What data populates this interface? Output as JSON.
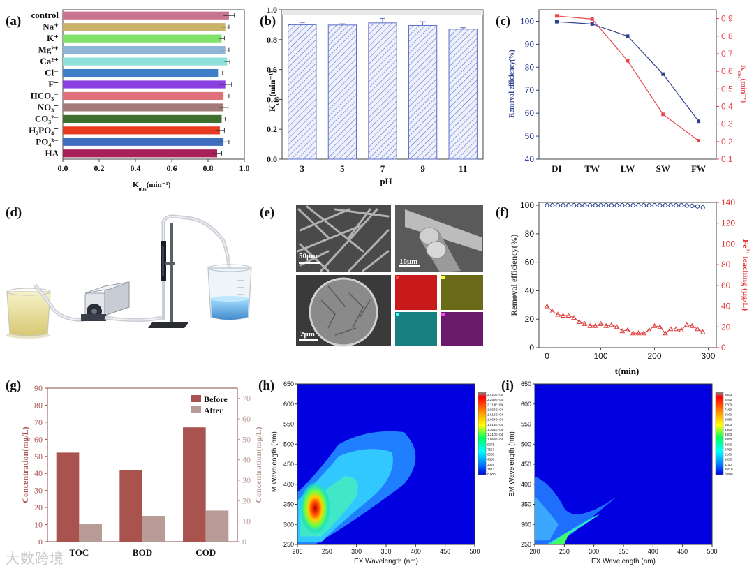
{
  "figure": {
    "panel_labels": [
      "(a)",
      "(b)",
      "(c)",
      "(d)",
      "(e)",
      "(f)",
      "(g)",
      "(h)",
      "(i)"
    ],
    "watermark": "大数跨境"
  },
  "chart_data": [
    {
      "panel": "a",
      "type": "bar",
      "orientation": "horizontal",
      "xlabel": "K",
      "xlabel_sub": "obs",
      "xlabel_tail": "(min⁻¹)",
      "xlim": [
        0,
        1.0
      ],
      "xticks": [
        0.0,
        0.2,
        0.4,
        0.6,
        0.8,
        1.0
      ],
      "categories": [
        "control",
        "Na⁺",
        "K⁺",
        "Mg²⁺",
        "Ca²⁺",
        "Cl⁻",
        "F⁻",
        "HCO₃⁻",
        "NO₃⁻",
        "CO₃²⁻",
        "H₂PO₄⁻",
        "PO₄³⁻",
        "HA"
      ],
      "values": [
        0.915,
        0.895,
        0.875,
        0.895,
        0.905,
        0.855,
        0.895,
        0.885,
        0.885,
        0.875,
        0.865,
        0.885,
        0.85
      ],
      "errors": [
        0.03,
        0.02,
        0.015,
        0.02,
        0.015,
        0.025,
        0.035,
        0.03,
        0.025,
        0.02,
        0.025,
        0.03,
        0.025
      ],
      "colors": [
        "#c9758f",
        "#c9b36a",
        "#7fe06a",
        "#8fb5d8",
        "#8fe0d8",
        "#3f7fc8",
        "#8a3fe0",
        "#e0707a",
        "#a27a78",
        "#3f6f2f",
        "#e83a1f",
        "#3f6fbf",
        "#a8205a"
      ]
    },
    {
      "panel": "b",
      "type": "bar",
      "xlabel": "pH",
      "ylabel": "K",
      "ylabel_sub": "obs",
      "ylabel_tail": "(min⁻¹)",
      "categories": [
        "3",
        "5",
        "7",
        "9",
        "11"
      ],
      "values": [
        0.9,
        0.898,
        0.912,
        0.895,
        0.87
      ],
      "errors": [
        0.015,
        0.008,
        0.03,
        0.025,
        0.01
      ],
      "ylim": [
        0,
        1.0
      ],
      "yticks": [
        0.0,
        0.2,
        0.4,
        0.6,
        0.8,
        1.0
      ]
    },
    {
      "panel": "c",
      "type": "line",
      "categories": [
        "DI",
        "TW",
        "LW",
        "SW",
        "FW"
      ],
      "series": [
        {
          "name": "Removal efficiency(%)",
          "axis": "left",
          "color": "#2e3f8f",
          "values": [
            99.8,
            98.8,
            93.5,
            77,
            56.5
          ]
        },
        {
          "name": "Kobs",
          "axis": "right",
          "color": "#e8474f",
          "values": [
            0.915,
            0.897,
            0.66,
            0.355,
            0.205
          ]
        }
      ],
      "ylabel_left": "Removal efficiency(%)",
      "ylabel_right": "K",
      "ylabel_right_sub": "obs",
      "ylabel_right_tail": "(min⁻¹)",
      "ylim_left": [
        40,
        105
      ],
      "yticks_left": [
        40,
        50,
        60,
        70,
        80,
        90,
        100
      ],
      "ylim_right": [
        0.1,
        0.95
      ],
      "yticks_right": [
        0.1,
        0.2,
        0.3,
        0.4,
        0.5,
        0.6,
        0.7,
        0.8,
        0.9
      ]
    },
    {
      "panel": "f",
      "type": "scatter",
      "xlabel": "t(min)",
      "xlim": [
        -15,
        315
      ],
      "xticks": [
        0,
        100,
        200,
        300
      ],
      "ylabel_left": "Removal efficiency(%)",
      "ylim_left": [
        0,
        102
      ],
      "yticks_left": [
        0,
        20,
        40,
        60,
        80,
        100
      ],
      "ylabel_right": "Fe",
      "ylabel_right_sup": "2+",
      "ylabel_right_tail": " leaching (μg/L)",
      "ylim_right": [
        0,
        140
      ],
      "yticks_right": [
        0,
        20,
        40,
        60,
        80,
        100,
        120,
        140
      ],
      "series": [
        {
          "name": "Removal efficiency",
          "axis": "left",
          "color": "#1f3f8f",
          "x": [
            0,
            10,
            20,
            30,
            40,
            50,
            60,
            70,
            80,
            90,
            100,
            110,
            120,
            130,
            140,
            150,
            160,
            170,
            180,
            190,
            200,
            210,
            220,
            230,
            240,
            250,
            260,
            270,
            280,
            290
          ],
          "y": [
            100,
            100,
            100,
            100,
            100,
            100,
            100,
            100,
            100,
            100,
            100,
            100,
            100,
            100,
            100,
            100,
            100,
            100,
            100,
            100,
            100,
            100,
            100,
            100,
            100,
            100,
            99.8,
            99.6,
            99.2,
            98.5
          ]
        },
        {
          "name": "Fe2+ leaching",
          "axis": "right",
          "color": "#e03a3a",
          "x": [
            0,
            10,
            20,
            30,
            40,
            50,
            60,
            70,
            80,
            90,
            100,
            110,
            120,
            130,
            140,
            150,
            160,
            170,
            180,
            190,
            200,
            210,
            220,
            230,
            240,
            250,
            260,
            270,
            280,
            290
          ],
          "y": [
            40,
            35,
            32,
            31,
            31,
            29,
            25,
            23,
            21,
            21,
            23,
            21,
            22,
            20,
            16,
            17,
            14,
            14,
            14,
            17,
            21,
            20,
            14,
            18,
            18,
            17,
            22,
            21,
            18,
            15
          ]
        }
      ]
    },
    {
      "panel": "g",
      "type": "bar",
      "categories": [
        "TOC",
        "BOD",
        "COD"
      ],
      "series": [
        {
          "name": "Before",
          "axis": "left",
          "color": "#a8534e",
          "values": [
            52.2,
            42,
            67
          ]
        },
        {
          "name": "After",
          "axis": "right",
          "color": "#b89a96",
          "values": [
            8.5,
            12.6,
            15.2
          ]
        }
      ],
      "ylabel_left": "Concentration(mg/L)",
      "ylim_left": [
        0,
        90
      ],
      "yticks_left": [
        0,
        10,
        20,
        30,
        40,
        50,
        60,
        70,
        80,
        90
      ],
      "ylabel_right": "Concentration(mg/L)",
      "ylim_right": [
        0,
        75
      ],
      "yticks_right": [
        0,
        10,
        20,
        30,
        40,
        50,
        60,
        70
      ]
    },
    {
      "panel": "h",
      "type": "heatmap",
      "xlabel": "EX Wavelength (nm)",
      "ylabel": "EM Wavelength (nm)",
      "xlim": [
        200,
        500
      ],
      "xticks": [
        200,
        250,
        300,
        350,
        400,
        450,
        500
      ],
      "ylim": [
        250,
        650
      ],
      "yticks": [
        250,
        300,
        350,
        400,
        450,
        500,
        550,
        600,
        650
      ],
      "colorbar": [
        "2.420E+04",
        "2.269E+04",
        "2.118E+04",
        "1.966E+04",
        "1.815E+04",
        "1.664E+04",
        "1.513E+04",
        "1.361E+04",
        "1.210E+04",
        "1.059E+04",
        "9075",
        "7563",
        "6050",
        "4538",
        "3025",
        "1513",
        "0.000"
      ],
      "peak": {
        "ex": 228,
        "em": 340,
        "value": 24200
      }
    },
    {
      "panel": "i",
      "type": "heatmap",
      "xlabel": "EX Wavelength (nm)",
      "ylabel": "EM Wavelength (nm)",
      "xlim": [
        200,
        500
      ],
      "xticks": [
        200,
        250,
        300,
        350,
        400,
        450,
        500
      ],
      "ylim": [
        250,
        650
      ],
      "yticks": [
        250,
        300,
        350,
        400,
        450,
        500,
        550,
        600,
        650
      ],
      "colorbar": [
        "8800",
        "8250",
        "7700",
        "7150",
        "6600",
        "6050",
        "5500",
        "4950",
        "4400",
        "3850",
        "3300",
        "2750",
        "2200",
        "1650",
        "1100",
        "550.0",
        "0.000"
      ],
      "peak": {
        "ex": 240,
        "em": 255,
        "value": 5500
      }
    }
  ],
  "panel_d": {
    "description_labels": []
  },
  "panel_e": {
    "scale_bars": [
      "50μm",
      "10μm",
      "2μm"
    ]
  }
}
